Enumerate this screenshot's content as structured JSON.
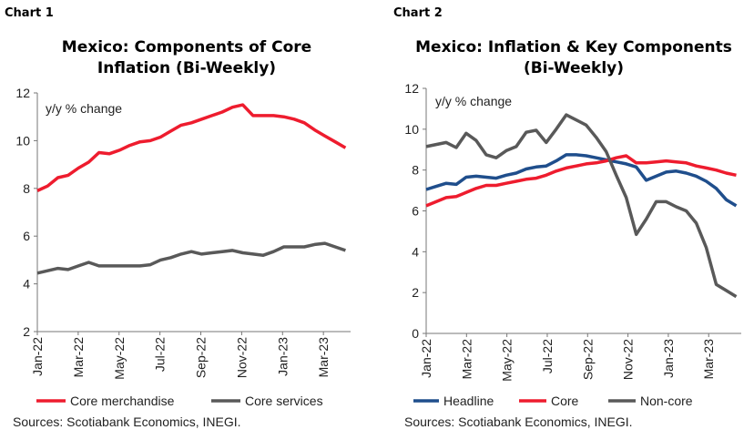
{
  "chart_data": [
    {
      "type": "line",
      "label": "Chart 1",
      "title": [
        "Mexico: Components of Core",
        "Inflation (Bi-Weekly)"
      ],
      "annotation": "y/y % change",
      "ylim": [
        2,
        12
      ],
      "yticks": [
        2,
        4,
        6,
        8,
        10,
        12
      ],
      "xtick_labels": [
        "Jan-22",
        "Mar-22",
        "May-22",
        "Jul-22",
        "Sep-22",
        "Nov-22",
        "Jan-23",
        "Mar-23"
      ],
      "x_start": "Jan-22",
      "x_frequency": "bi-weekly",
      "grid": false,
      "legend_position": "bottom",
      "series": [
        {
          "name": "Core merchandise",
          "color": "#ee1c2e",
          "values": [
            7.9,
            8.1,
            8.45,
            8.55,
            8.85,
            9.1,
            9.5,
            9.45,
            9.6,
            9.8,
            9.95,
            10.0,
            10.15,
            10.4,
            10.65,
            10.75,
            10.9,
            11.05,
            11.2,
            11.4,
            11.5,
            11.05,
            11.05,
            11.05,
            11.0,
            10.9,
            10.75,
            10.45,
            10.2,
            9.95,
            9.7
          ]
        },
        {
          "name": "Core services",
          "color": "#595959",
          "values": [
            4.45,
            4.55,
            4.65,
            4.6,
            4.75,
            4.9,
            4.75,
            4.75,
            4.75,
            4.75,
            4.75,
            4.8,
            5.0,
            5.1,
            5.25,
            5.35,
            5.25,
            5.3,
            5.35,
            5.4,
            5.3,
            5.25,
            5.2,
            5.35,
            5.55,
            5.55,
            5.55,
            5.65,
            5.7,
            5.55,
            5.4
          ]
        }
      ],
      "source": "Sources: Scotiabank Economics, INEGI."
    },
    {
      "type": "line",
      "label": "Chart 2",
      "title": [
        "Mexico: Inflation & Key Components",
        "(Bi-Weekly)"
      ],
      "annotation": "y/y  % change",
      "ylim": [
        0,
        12
      ],
      "yticks": [
        0,
        2,
        4,
        6,
        8,
        10,
        12
      ],
      "xtick_labels": [
        "Jan-22",
        "Mar-22",
        "May-22",
        "Jul-22",
        "Sep-22",
        "Nov-22",
        "Jan-23",
        "Mar-23"
      ],
      "x_start": "Jan-22",
      "x_frequency": "bi-weekly",
      "grid": false,
      "legend_position": "bottom",
      "series": [
        {
          "name": "Headline",
          "color": "#1f4e8c",
          "values": [
            7.05,
            7.2,
            7.35,
            7.3,
            7.65,
            7.7,
            7.65,
            7.6,
            7.75,
            7.85,
            8.05,
            8.15,
            8.2,
            8.45,
            8.75,
            8.75,
            8.7,
            8.6,
            8.5,
            8.4,
            8.3,
            8.15,
            7.5,
            7.7,
            7.9,
            7.95,
            7.85,
            7.7,
            7.45,
            7.1,
            6.55,
            6.25
          ]
        },
        {
          "name": "Core",
          "color": "#ee1c2e",
          "values": [
            6.25,
            6.45,
            6.65,
            6.7,
            6.9,
            7.1,
            7.25,
            7.25,
            7.35,
            7.45,
            7.55,
            7.6,
            7.75,
            7.95,
            8.1,
            8.2,
            8.3,
            8.35,
            8.45,
            8.6,
            8.7,
            8.35,
            8.35,
            8.4,
            8.45,
            8.4,
            8.35,
            8.2,
            8.1,
            8.0,
            7.85,
            7.75
          ]
        },
        {
          "name": "Non-core",
          "color": "#595959",
          "values": [
            9.15,
            9.25,
            9.35,
            9.1,
            9.8,
            9.45,
            8.75,
            8.6,
            8.95,
            9.15,
            9.85,
            9.95,
            9.35,
            10.0,
            10.7,
            10.45,
            10.2,
            9.6,
            8.9,
            7.75,
            6.65,
            4.85,
            5.6,
            6.45,
            6.45,
            6.2,
            6.0,
            5.4,
            4.2,
            2.4,
            2.1,
            1.8
          ]
        }
      ],
      "source": "Sources: Scotiabank Economics, INEGI."
    }
  ]
}
